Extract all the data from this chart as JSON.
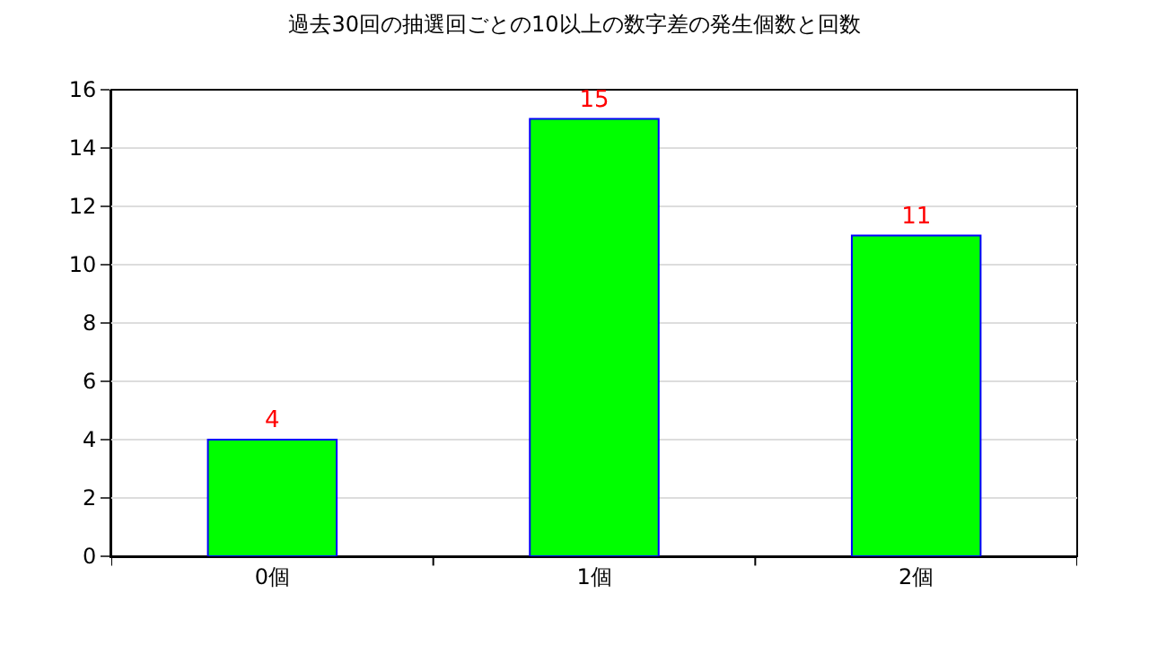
{
  "chart_data": {
    "type": "bar",
    "title": "過去30回の抽選回ごとの10以上の数字差の発生個数と回数",
    "categories": [
      "0個",
      "1個",
      "2個"
    ],
    "values": [
      4,
      15,
      11
    ],
    "color": "#00ff00",
    "ylim": [
      0,
      16
    ],
    "yticks": [
      0,
      2,
      4,
      6,
      8,
      10,
      12,
      14,
      16
    ],
    "grid": "y",
    "data_labels": true
  }
}
